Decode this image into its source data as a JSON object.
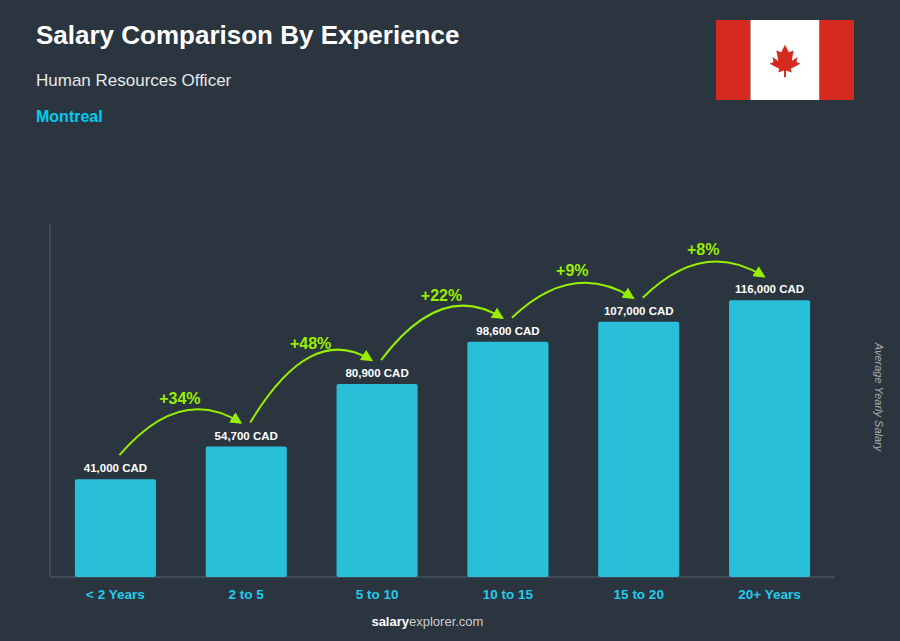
{
  "chart_data": {
    "type": "bar",
    "title": "Salary Comparison By Experience",
    "subtitle": "Human Resources Officer",
    "city": "Montreal",
    "ylabel": "Average Yearly Salary",
    "footer": [
      "salary",
      "explorer.com"
    ],
    "categories": [
      "< 2 Years",
      "2 to 5",
      "5 to 10",
      "10 to 15",
      "15 to 20",
      "20+ Years"
    ],
    "values": [
      41000,
      54700,
      80900,
      98600,
      107000,
      116000
    ],
    "value_labels": [
      "41,000 CAD",
      "54,700 CAD",
      "80,900 CAD",
      "98,600 CAD",
      "107,000 CAD",
      "116,000 CAD"
    ],
    "annotations": [
      "+34%",
      "+48%",
      "+22%",
      "+9%",
      "+8%"
    ],
    "color": "#29bfd8",
    "ylim": [
      0,
      148000
    ],
    "data_labels": true,
    "tick_labels": "x",
    "grid": false
  }
}
